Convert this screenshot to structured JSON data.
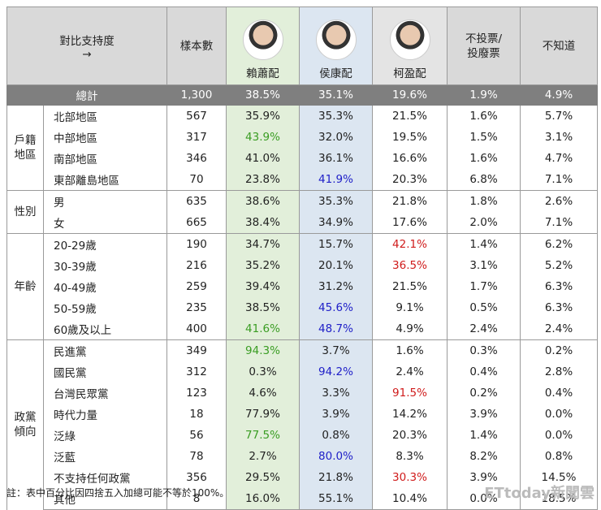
{
  "header": {
    "corner": [
      "對比支持度",
      "→"
    ],
    "columns": [
      "樣本數",
      "賴蕭配",
      "侯康配",
      "柯盈配",
      "不投票/投廢票",
      "不知道"
    ]
  },
  "total": {
    "label": "總計",
    "n": "1,300",
    "values": [
      "38.5%",
      "35.1%",
      "19.6%",
      "1.9%",
      "4.9%"
    ]
  },
  "groups": [
    {
      "label": "戶籍地區",
      "rows": [
        {
          "label": "北部地區",
          "n": "567",
          "values": [
            "35.9%",
            "35.3%",
            "21.5%",
            "1.6%",
            "5.7%"
          ]
        },
        {
          "label": "中部地區",
          "n": "317",
          "values": [
            "43.9%",
            "32.0%",
            "19.5%",
            "1.5%",
            "3.1%"
          ],
          "colors": [
            "#3a9d23",
            null,
            null,
            null,
            null
          ]
        },
        {
          "label": "南部地區",
          "n": "346",
          "values": [
            "41.0%",
            "36.1%",
            "16.6%",
            "1.6%",
            "4.7%"
          ]
        },
        {
          "label": "東部離島地區",
          "n": "70",
          "values": [
            "23.8%",
            "41.9%",
            "20.3%",
            "6.8%",
            "7.1%"
          ],
          "colors": [
            null,
            "#2020c8",
            null,
            null,
            null
          ]
        }
      ]
    },
    {
      "label": "性別",
      "rows": [
        {
          "label": "男",
          "n": "635",
          "values": [
            "38.6%",
            "35.3%",
            "21.8%",
            "1.8%",
            "2.6%"
          ]
        },
        {
          "label": "女",
          "n": "665",
          "values": [
            "38.4%",
            "34.9%",
            "17.6%",
            "2.0%",
            "7.1%"
          ]
        }
      ]
    },
    {
      "label": "年齡",
      "rows": [
        {
          "label": "20-29歲",
          "n": "190",
          "values": [
            "34.7%",
            "15.7%",
            "42.1%",
            "1.4%",
            "6.2%"
          ],
          "colors": [
            null,
            null,
            "#d01c1c",
            null,
            null
          ]
        },
        {
          "label": "30-39歲",
          "n": "216",
          "values": [
            "35.2%",
            "20.1%",
            "36.5%",
            "3.1%",
            "5.2%"
          ],
          "colors": [
            null,
            null,
            "#d01c1c",
            null,
            null
          ]
        },
        {
          "label": "40-49歲",
          "n": "259",
          "values": [
            "39.4%",
            "31.2%",
            "21.5%",
            "1.7%",
            "6.3%"
          ]
        },
        {
          "label": "50-59歲",
          "n": "235",
          "values": [
            "38.5%",
            "45.6%",
            "9.1%",
            "0.5%",
            "6.3%"
          ],
          "colors": [
            null,
            "#2020c8",
            null,
            null,
            null
          ]
        },
        {
          "label": "60歲及以上",
          "n": "400",
          "values": [
            "41.6%",
            "48.7%",
            "4.9%",
            "2.4%",
            "2.4%"
          ],
          "colors": [
            "#3a9d23",
            "#2020c8",
            null,
            null,
            null
          ]
        }
      ]
    },
    {
      "label": "政黨傾向",
      "rows": [
        {
          "label": "民進黨",
          "n": "349",
          "values": [
            "94.3%",
            "3.7%",
            "1.6%",
            "0.3%",
            "0.2%"
          ],
          "colors": [
            "#3a9d23",
            null,
            null,
            null,
            null
          ]
        },
        {
          "label": "國民黨",
          "n": "312",
          "values": [
            "0.3%",
            "94.2%",
            "2.4%",
            "0.4%",
            "2.8%"
          ],
          "colors": [
            null,
            "#2020c8",
            null,
            null,
            null
          ]
        },
        {
          "label": "台灣民眾黨",
          "n": "123",
          "values": [
            "4.6%",
            "3.3%",
            "91.5%",
            "0.2%",
            "0.4%"
          ],
          "colors": [
            null,
            null,
            "#d01c1c",
            null,
            null
          ]
        },
        {
          "label": "時代力量",
          "n": "18",
          "values": [
            "77.9%",
            "3.9%",
            "14.2%",
            "3.9%",
            "0.0%"
          ]
        },
        {
          "label": "泛綠",
          "n": "56",
          "values": [
            "77.5%",
            "0.8%",
            "20.3%",
            "1.4%",
            "0.0%"
          ],
          "colors": [
            "#3a9d23",
            null,
            null,
            null,
            null
          ]
        },
        {
          "label": "泛藍",
          "n": "78",
          "values": [
            "2.7%",
            "80.0%",
            "8.3%",
            "8.2%",
            "0.8%"
          ],
          "colors": [
            null,
            "#2020c8",
            null,
            null,
            null
          ]
        },
        {
          "label": "不支持任何政黨",
          "n": "356",
          "values": [
            "29.5%",
            "21.8%",
            "30.3%",
            "3.9%",
            "14.5%"
          ],
          "colors": [
            null,
            null,
            "#d01c1c",
            null,
            null
          ]
        },
        {
          "label": "其他",
          "n": "8",
          "values": [
            "16.0%",
            "55.1%",
            "10.4%",
            "0.0%",
            "18.5%"
          ]
        }
      ]
    }
  ],
  "footnote": "註：表中百分比因四捨五入加總可能不等於100%。",
  "watermark": "ETtoday新聞雲"
}
